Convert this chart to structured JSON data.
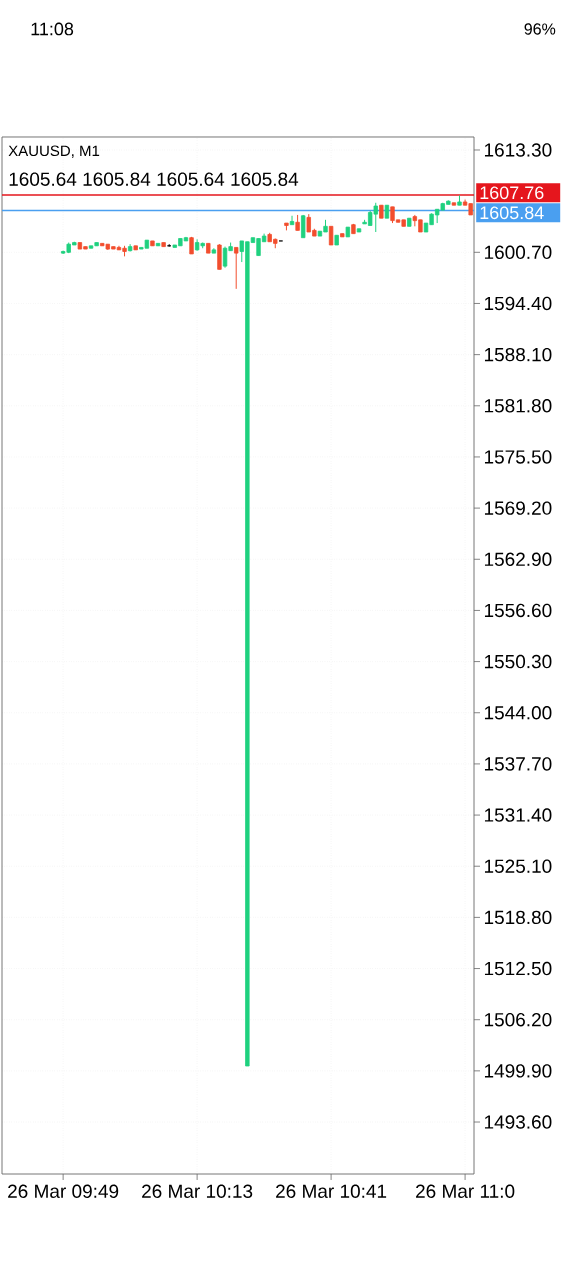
{
  "chart_data": {
    "type": "candlestick",
    "title": "XAUUSD, M1",
    "subtitle": "1605.64 1605.84 1605.64 1605.84",
    "annotations": [
      "11:08",
      "96%"
    ],
    "categories": [
      "26 Mar 09:49",
      null,
      null,
      null,
      null,
      null,
      null,
      null,
      null,
      null,
      null,
      null,
      null,
      null,
      null,
      null,
      null,
      null,
      null,
      null,
      null,
      null,
      null,
      null,
      "26 Mar 10:13",
      null,
      null,
      null,
      null,
      null,
      null,
      null,
      null,
      null,
      null,
      null,
      null,
      null,
      null,
      null,
      null,
      null,
      null,
      null,
      null,
      null,
      null,
      null,
      "26 Mar 10:41",
      null,
      null,
      null,
      null,
      null,
      null,
      null,
      null,
      null,
      null,
      null,
      null,
      null,
      null,
      null,
      null,
      null,
      null,
      null,
      null,
      null,
      null,
      null,
      "26 Mar 11:0",
      null
    ],
    "ohlc": [
      [
        1600.6,
        1600.9,
        1600.5,
        1600.8
      ],
      [
        1600.7,
        1601.9,
        1600.6,
        1601.7
      ],
      [
        1601.6,
        1602.0,
        1601.6,
        1601.9
      ],
      [
        1601.9,
        1601.9,
        1601.1,
        1601.1
      ],
      [
        1601.4,
        1601.4,
        1601.1,
        1601.1
      ],
      [
        1601.2,
        1601.5,
        1601.2,
        1601.5
      ],
      [
        1601.5,
        1601.9,
        1601.5,
        1601.9
      ],
      [
        1601.8,
        1601.8,
        1601.5,
        1601.5
      ],
      [
        1601.7,
        1601.7,
        1601.0,
        1601.1
      ],
      [
        1601.4,
        1601.4,
        1601.1,
        1601.1
      ],
      [
        1601.3,
        1601.5,
        1601.0,
        1601.0
      ],
      [
        1601.2,
        1601.5,
        1600.2,
        1600.8
      ],
      [
        1600.9,
        1601.7,
        1600.8,
        1601.4
      ],
      [
        1601.5,
        1601.5,
        1601.0,
        1601.0
      ],
      [
        1601.1,
        1601.3,
        1601.1,
        1601.3
      ],
      [
        1601.2,
        1602.2,
        1601.2,
        1602.2
      ],
      [
        1602.1,
        1602.1,
        1601.5,
        1601.5
      ],
      [
        1601.5,
        1601.8,
        1601.5,
        1601.8
      ],
      [
        1601.9,
        1601.9,
        1601.4,
        1601.4
      ],
      [
        1601.5,
        1601.7,
        1601.4,
        1601.5
      ],
      [
        1601.3,
        1601.6,
        1601.3,
        1601.6
      ],
      [
        1601.5,
        1602.4,
        1601.5,
        1602.4
      ],
      [
        1602.1,
        1602.6,
        1602.1,
        1602.5
      ],
      [
        1602.5,
        1602.6,
        1600.5,
        1600.5
      ],
      [
        1601.0,
        1602.3,
        1600.9,
        1601.9
      ],
      [
        1601.5,
        1601.9,
        1601.2,
        1601.8
      ],
      [
        1601.8,
        1601.8,
        1600.6,
        1600.6
      ],
      [
        1600.6,
        1601.2,
        1600.6,
        1601.0
      ],
      [
        1601.6,
        1601.7,
        1598.6,
        1598.6
      ],
      [
        1599.0,
        1601.4,
        1598.8,
        1601.2
      ],
      [
        1600.9,
        1601.9,
        1600.9,
        1601.4
      ],
      [
        1601.3,
        1601.3,
        1596.2,
        1600.6
      ],
      [
        1600.8,
        1602.1,
        1599.5,
        1602.1
      ],
      [
        1500.5,
        1602.0,
        1500.5,
        1602.0
      ],
      [
        1601.9,
        1602.5,
        1601.9,
        1602.5
      ],
      [
        1600.3,
        1602.4,
        1600.3,
        1602.4
      ],
      [
        1602.0,
        1603.0,
        1602.0,
        1602.7
      ],
      [
        1602.9,
        1603.1,
        1602.0,
        1602.0
      ],
      [
        1602.3,
        1602.4,
        1601.2,
        1601.8
      ],
      [
        1602.1,
        1602.1,
        1602.1,
        1602.1
      ],
      [
        1604.3,
        1604.3,
        1603.4,
        1604.0
      ],
      [
        1604.1,
        1605.2,
        1604.1,
        1604.5
      ],
      [
        1604.4,
        1605.3,
        1603.4,
        1603.4
      ],
      [
        1602.5,
        1605.3,
        1602.5,
        1605.2
      ],
      [
        1605.0,
        1605.4,
        1603.2,
        1603.2
      ],
      [
        1603.4,
        1603.6,
        1602.7,
        1602.7
      ],
      [
        1602.7,
        1603.3,
        1602.7,
        1603.3
      ],
      [
        1603.2,
        1604.7,
        1603.2,
        1603.9
      ],
      [
        1603.9,
        1603.9,
        1601.6,
        1601.6
      ],
      [
        1601.6,
        1602.8,
        1601.6,
        1602.8
      ],
      [
        1603.0,
        1603.0,
        1602.6,
        1602.6
      ],
      [
        1602.6,
        1603.8,
        1602.6,
        1603.8
      ],
      [
        1604.1,
        1604.2,
        1603.0,
        1603.0
      ],
      [
        1603.2,
        1603.6,
        1603.2,
        1603.6
      ],
      [
        1604.2,
        1604.7,
        1604.2,
        1604.4
      ],
      [
        1604.0,
        1605.8,
        1604.0,
        1605.6
      ],
      [
        1605.4,
        1606.8,
        1603.2,
        1606.4
      ],
      [
        1606.5,
        1606.5,
        1604.9,
        1604.9
      ],
      [
        1604.9,
        1606.5,
        1604.9,
        1606.5
      ],
      [
        1606.3,
        1606.3,
        1604.3,
        1604.6
      ],
      [
        1604.7,
        1604.7,
        1604.4,
        1604.4
      ],
      [
        1604.7,
        1604.7,
        1603.9,
        1603.9
      ],
      [
        1603.9,
        1604.9,
        1603.9,
        1604.9
      ],
      [
        1605.1,
        1605.3,
        1603.9,
        1604.6
      ],
      [
        1604.7,
        1604.7,
        1603.2,
        1603.2
      ],
      [
        1603.2,
        1604.3,
        1603.2,
        1604.3
      ],
      [
        1604.1,
        1605.5,
        1604.1,
        1605.4
      ],
      [
        1605.3,
        1606.0,
        1604.3,
        1606.0
      ],
      [
        1605.9,
        1606.8,
        1605.9,
        1606.7
      ],
      [
        1606.6,
        1607.1,
        1606.6,
        1607.0
      ],
      [
        1606.8,
        1606.8,
        1606.5,
        1606.5
      ],
      [
        1606.5,
        1607.7,
        1606.5,
        1606.9
      ],
      [
        1606.9,
        1607.2,
        1606.5,
        1606.5
      ],
      [
        1606.7,
        1606.7,
        1605.3,
        1605.3
      ]
    ],
    "colors": [
      "#1fd17f",
      "#1fd17f",
      "#1fd17f",
      "#f24e2e",
      "#f24e2e",
      "#1fd17f",
      "#1fd17f",
      "#f24e2e",
      "#f24e2e",
      "#f24e2e",
      "#f24e2e",
      "#f24e2e",
      "#1fd17f",
      "#f24e2e",
      "#1fd17f",
      "#1fd17f",
      "#f24e2e",
      "#1fd17f",
      "#f24e2e",
      "#000000",
      "#1fd17f",
      "#1fd17f",
      "#1fd17f",
      "#f24e2e",
      "#1fd17f",
      "#1fd17f",
      "#f24e2e",
      "#1fd17f",
      "#f24e2e",
      "#1fd17f",
      "#1fd17f",
      "#f24e2e",
      "#1fd17f",
      "#1fd17f",
      "#1fd17f",
      "#1fd17f",
      "#1fd17f",
      "#f24e2e",
      "#f24e2e",
      "#000000",
      "#f24e2e",
      "#1fd17f",
      "#f24e2e",
      "#1fd17f",
      "#f24e2e",
      "#f24e2e",
      "#1fd17f",
      "#1fd17f",
      "#f24e2e",
      "#1fd17f",
      "#f24e2e",
      "#1fd17f",
      "#f24e2e",
      "#1fd17f",
      "#1fd17f",
      "#1fd17f",
      "#1fd17f",
      "#f24e2e",
      "#1fd17f",
      "#f24e2e",
      "#f24e2e",
      "#f24e2e",
      "#1fd17f",
      "#f24e2e",
      "#f24e2e",
      "#1fd17f",
      "#1fd17f",
      "#1fd17f",
      "#1fd17f",
      "#1fd17f",
      "#f24e2e",
      "#1fd17f",
      "#f24e2e",
      "#f24e2e"
    ],
    "ylim": [
      1487.2,
      1614.9
    ],
    "yticks": [
      {
        "value": 1613.3,
        "label": "1613.30"
      },
      {
        "value": 1600.7,
        "label": "1600.70"
      },
      {
        "value": 1594.4,
        "label": "1594.40"
      },
      {
        "value": 1588.1,
        "label": "1588.10"
      },
      {
        "value": 1581.8,
        "label": "1581.80"
      },
      {
        "value": 1575.5,
        "label": "1575.50"
      },
      {
        "value": 1569.2,
        "label": "1569.20"
      },
      {
        "value": 1562.9,
        "label": "1562.90"
      },
      {
        "value": 1556.6,
        "label": "1556.60"
      },
      {
        "value": 1550.3,
        "label": "1550.30"
      },
      {
        "value": 1544.0,
        "label": "1544.00"
      },
      {
        "value": 1537.7,
        "label": "1537.70"
      },
      {
        "value": 1531.4,
        "label": "1531.40"
      },
      {
        "value": 1525.1,
        "label": "1525.10"
      },
      {
        "value": 1518.8,
        "label": "1518.80"
      },
      {
        "value": 1512.5,
        "label": "1512.50"
      },
      {
        "value": 1506.2,
        "label": "1506.20"
      },
      {
        "value": 1499.9,
        "label": "1499.90"
      },
      {
        "value": 1493.6,
        "label": "1493.60"
      }
    ],
    "grid": true,
    "ref_lines": [
      {
        "axis": "y",
        "value": 1607.76,
        "label": "1607.76",
        "color": "#e5161d"
      },
      {
        "axis": "y",
        "value": 1605.84,
        "label": "1605.84",
        "color": "#4a9ff0"
      }
    ]
  }
}
